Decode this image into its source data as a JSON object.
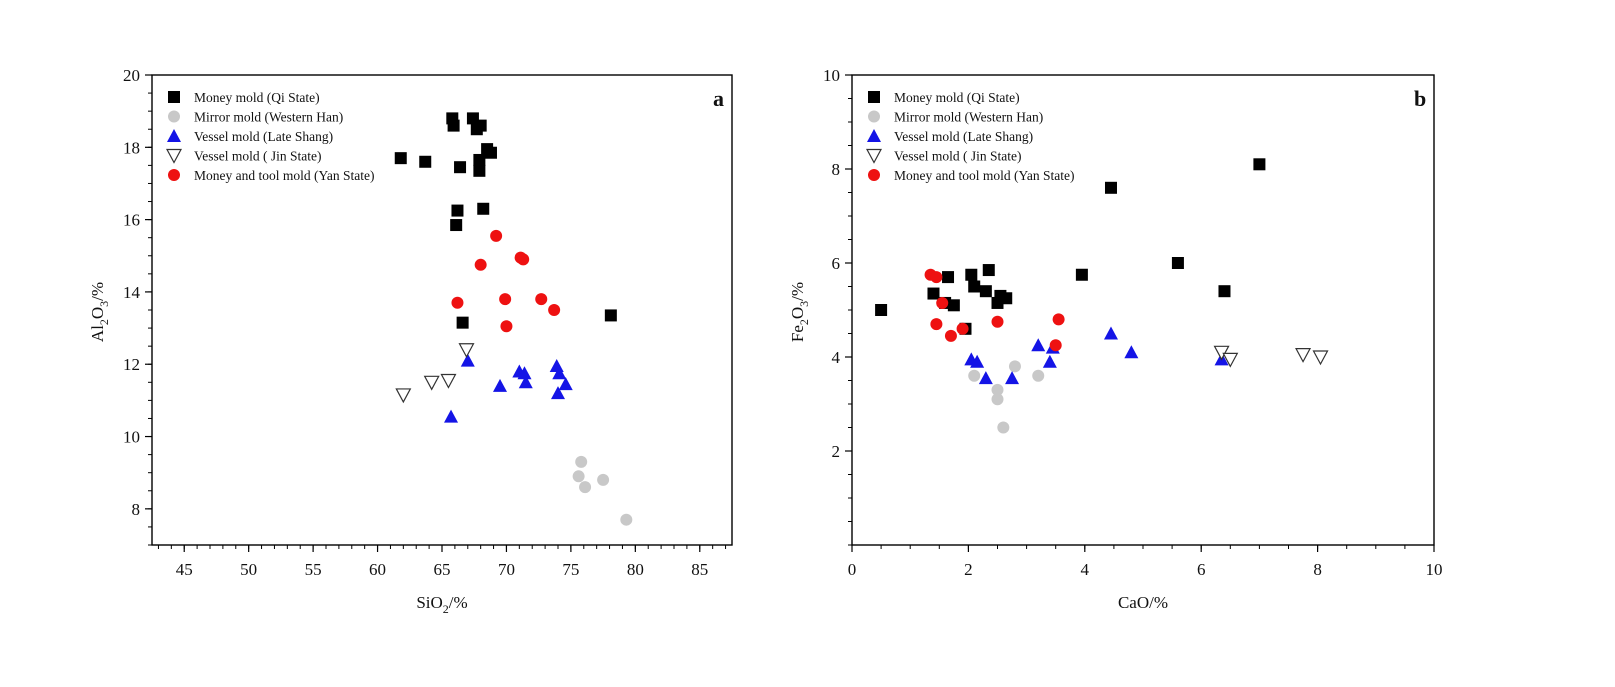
{
  "chart_data": [
    {
      "type": "scatter",
      "panel_label": "a",
      "xlabel": {
        "main": "SiO",
        "sub": "2",
        "tail": "/%"
      },
      "ylabel": {
        "pre": "Al",
        "sub1": "2",
        "mid": "O",
        "sub2": "3",
        "tail": "/%"
      },
      "xlim": [
        42.5,
        87.5
      ],
      "ylim": [
        7,
        20
      ],
      "xticks": [
        "45",
        "50",
        "55",
        "60",
        "65",
        "70",
        "75",
        "80",
        "85"
      ],
      "yticks": [
        "8",
        "10",
        "12",
        "14",
        "16",
        "18",
        "20"
      ],
      "legend_position": "top-left",
      "series": [
        {
          "name": "Money mold (Qi State)",
          "marker": "square",
          "color": "#000000",
          "points": [
            [
              61.8,
              17.7
            ],
            [
              63.7,
              17.6
            ],
            [
              65.8,
              18.8
            ],
            [
              65.9,
              18.6
            ],
            [
              66.2,
              16.25
            ],
            [
              66.1,
              15.85
            ],
            [
              66.4,
              17.45
            ],
            [
              66.6,
              13.15
            ],
            [
              67.4,
              18.8
            ],
            [
              67.7,
              18.5
            ],
            [
              68.0,
              18.6
            ],
            [
              67.9,
              17.65
            ],
            [
              67.9,
              17.35
            ],
            [
              68.2,
              16.3
            ],
            [
              68.5,
              17.95
            ],
            [
              68.8,
              17.85
            ],
            [
              78.1,
              13.35
            ]
          ]
        },
        {
          "name": "Mirror mold (Western Han)",
          "marker": "circle",
          "color": "#c8c8c8",
          "points": [
            [
              75.6,
              8.9
            ],
            [
              75.8,
              9.3
            ],
            [
              76.1,
              8.6
            ],
            [
              77.5,
              8.8
            ],
            [
              79.3,
              7.7
            ]
          ]
        },
        {
          "name": "Vessel mold (Late Shang)",
          "marker": "triangle",
          "color": "#1414e6",
          "points": [
            [
              65.7,
              10.55
            ],
            [
              67.0,
              12.1
            ],
            [
              69.5,
              11.4
            ],
            [
              71.0,
              11.8
            ],
            [
              71.4,
              11.75
            ],
            [
              71.5,
              11.5
            ],
            [
              73.9,
              11.95
            ],
            [
              74.1,
              11.75
            ],
            [
              74.0,
              11.2
            ],
            [
              74.6,
              11.45
            ]
          ]
        },
        {
          "name": "Vessel mold ( Jin State)",
          "marker": "triangle-open",
          "color": "#333333",
          "points": [
            [
              62.0,
              11.15
            ],
            [
              64.2,
              11.5
            ],
            [
              65.5,
              11.55
            ],
            [
              66.9,
              12.4
            ]
          ]
        },
        {
          "name": "Money and tool mold (Yan State)",
          "marker": "circle",
          "color": "#ee1111",
          "points": [
            [
              66.2,
              13.7
            ],
            [
              68.0,
              14.75
            ],
            [
              69.2,
              15.55
            ],
            [
              69.9,
              13.8
            ],
            [
              70.0,
              13.05
            ],
            [
              71.1,
              14.95
            ],
            [
              71.3,
              14.9
            ],
            [
              72.7,
              13.8
            ],
            [
              73.7,
              13.5
            ]
          ]
        }
      ]
    },
    {
      "type": "scatter",
      "panel_label": "b",
      "xlabel": {
        "main": "CaO/%",
        "sub": "",
        "tail": ""
      },
      "ylabel": {
        "pre": "Fe",
        "sub1": "2",
        "mid": "O",
        "sub2": "3",
        "tail": "/%"
      },
      "xlim": [
        0,
        10
      ],
      "ylim": [
        0,
        10
      ],
      "xticks": [
        "0",
        "2",
        "4",
        "6",
        "8",
        "10"
      ],
      "yticks": [
        "2",
        "4",
        "6",
        "8",
        "10"
      ],
      "legend_position": "top-left",
      "series": [
        {
          "name": "Money mold (Qi State)",
          "marker": "square",
          "color": "#000000",
          "points": [
            [
              0.5,
              5.0
            ],
            [
              1.4,
              5.35
            ],
            [
              1.6,
              5.15
            ],
            [
              1.65,
              5.7
            ],
            [
              1.75,
              5.1
            ],
            [
              1.95,
              4.6
            ],
            [
              2.05,
              5.75
            ],
            [
              2.1,
              5.5
            ],
            [
              2.3,
              5.4
            ],
            [
              2.35,
              5.85
            ],
            [
              2.5,
              5.15
            ],
            [
              2.55,
              5.3
            ],
            [
              2.65,
              5.25
            ],
            [
              3.95,
              5.75
            ],
            [
              4.45,
              7.6
            ],
            [
              5.6,
              6.0
            ],
            [
              6.4,
              5.4
            ],
            [
              7.0,
              8.1
            ]
          ]
        },
        {
          "name": "Mirror mold (Western Han)",
          "marker": "circle",
          "color": "#c8c8c8",
          "points": [
            [
              2.1,
              3.6
            ],
            [
              2.5,
              3.3
            ],
            [
              2.5,
              3.1
            ],
            [
              2.6,
              2.5
            ],
            [
              2.8,
              3.8
            ],
            [
              3.2,
              3.6
            ]
          ]
        },
        {
          "name": "Vessel mold (Late Shang)",
          "marker": "triangle",
          "color": "#1414e6",
          "points": [
            [
              2.05,
              3.95
            ],
            [
              2.15,
              3.9
            ],
            [
              2.3,
              3.55
            ],
            [
              2.75,
              3.55
            ],
            [
              3.2,
              4.25
            ],
            [
              3.4,
              3.9
            ],
            [
              3.45,
              4.2
            ],
            [
              4.45,
              4.5
            ],
            [
              4.8,
              4.1
            ],
            [
              6.35,
              3.95
            ]
          ]
        },
        {
          "name": "Vessel mold ( Jin State)",
          "marker": "triangle-open",
          "color": "#333333",
          "points": [
            [
              6.35,
              4.1
            ],
            [
              6.5,
              3.95
            ],
            [
              7.75,
              4.05
            ],
            [
              8.05,
              4.0
            ]
          ]
        },
        {
          "name": "Money and tool mold (Yan State)",
          "marker": "circle",
          "color": "#ee1111",
          "points": [
            [
              1.35,
              5.75
            ],
            [
              1.45,
              5.7
            ],
            [
              1.45,
              4.7
            ],
            [
              1.55,
              5.15
            ],
            [
              1.7,
              4.45
            ],
            [
              1.9,
              4.6
            ],
            [
              2.5,
              4.75
            ],
            [
              3.5,
              4.25
            ],
            [
              3.55,
              4.8
            ]
          ]
        }
      ]
    }
  ]
}
